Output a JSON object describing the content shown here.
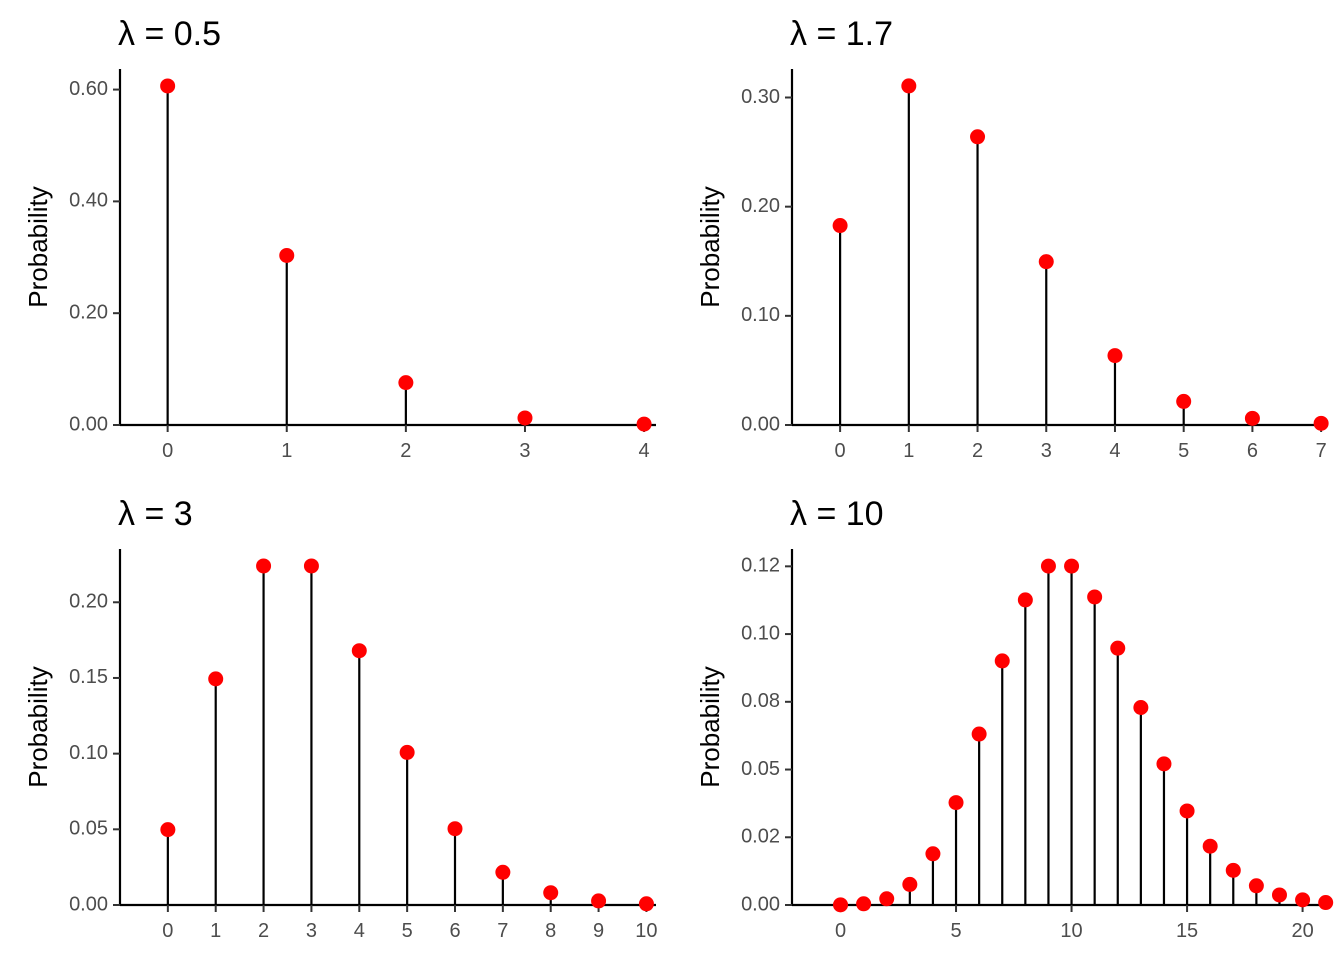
{
  "chart_data": [
    {
      "type": "lollipop",
      "title": "λ = 0.5",
      "ylabel": "Probability",
      "xlabel": "",
      "x": [
        0,
        1,
        2,
        3,
        4
      ],
      "values": [
        0.6065,
        0.3033,
        0.0758,
        0.0126,
        0.0016
      ],
      "xlim": [
        -0.4,
        4.1
      ],
      "ylim": [
        0,
        0.6368
      ],
      "xticks": [
        0,
        1,
        2,
        3,
        4
      ],
      "yticks": [
        0,
        0.2,
        0.4,
        0.6
      ],
      "ytick_labels": [
        "0.00",
        "0.20",
        "0.40",
        "0.60"
      ],
      "marker_color": "#ff0000",
      "stem_color": "#000000"
    },
    {
      "type": "lollipop",
      "title": "λ = 1.7",
      "ylabel": "Probability",
      "xlabel": "",
      "x": [
        0,
        1,
        2,
        3,
        4,
        5,
        6,
        7
      ],
      "values": [
        0.1827,
        0.3106,
        0.264,
        0.1496,
        0.0636,
        0.0216,
        0.0061,
        0.0015
      ],
      "xlim": [
        -0.7,
        7.1
      ],
      "ylim": [
        0,
        0.3261
      ],
      "xticks": [
        0,
        1,
        2,
        3,
        4,
        5,
        6,
        7
      ],
      "yticks": [
        0,
        0.1,
        0.2,
        0.3
      ],
      "ytick_labels": [
        "0.00",
        "0.10",
        "0.20",
        "0.30"
      ],
      "marker_color": "#ff0000",
      "stem_color": "#000000"
    },
    {
      "type": "lollipop",
      "title": "λ = 3",
      "ylabel": "Probability",
      "xlabel": "",
      "x": [
        0,
        1,
        2,
        3,
        4,
        5,
        6,
        7,
        8,
        9,
        10
      ],
      "values": [
        0.0498,
        0.1494,
        0.224,
        0.224,
        0.168,
        0.1008,
        0.0504,
        0.0216,
        0.0081,
        0.0027,
        0.0008
      ],
      "xlim": [
        -1.0,
        10.2
      ],
      "ylim": [
        0,
        0.2352
      ],
      "xticks": [
        0,
        1,
        2,
        3,
        4,
        5,
        6,
        7,
        8,
        9,
        10
      ],
      "yticks": [
        0,
        0.05,
        0.1,
        0.15,
        0.2
      ],
      "ytick_labels": [
        "0.00",
        "0.05",
        "0.10",
        "0.15",
        "0.20"
      ],
      "marker_color": "#ff0000",
      "stem_color": "#000000"
    },
    {
      "type": "lollipop",
      "title": "λ = 10",
      "ylabel": "Probability",
      "xlabel": "",
      "x": [
        0,
        1,
        2,
        3,
        4,
        5,
        6,
        7,
        8,
        9,
        10,
        11,
        12,
        13,
        14,
        15,
        16,
        17,
        18,
        19,
        20,
        21
      ],
      "values": [
        5e-05,
        0.00045,
        0.0023,
        0.0076,
        0.0189,
        0.0378,
        0.0631,
        0.0901,
        0.1126,
        0.1251,
        0.1251,
        0.1137,
        0.0948,
        0.0729,
        0.0521,
        0.0347,
        0.0217,
        0.0128,
        0.0071,
        0.0037,
        0.0019,
        0.0009
      ],
      "xlim": [
        -2.1,
        21.1
      ],
      "ylim": [
        0,
        0.1314
      ],
      "xticks": [
        0,
        5,
        10,
        15,
        20
      ],
      "yticks": [
        0,
        0.025,
        0.05,
        0.075,
        0.1,
        0.125
      ],
      "ytick_labels": [
        "0.00",
        "0.02",
        "0.05",
        "0.08",
        "0.10",
        "0.12"
      ],
      "marker_color": "#ff0000",
      "stem_color": "#000000"
    }
  ]
}
